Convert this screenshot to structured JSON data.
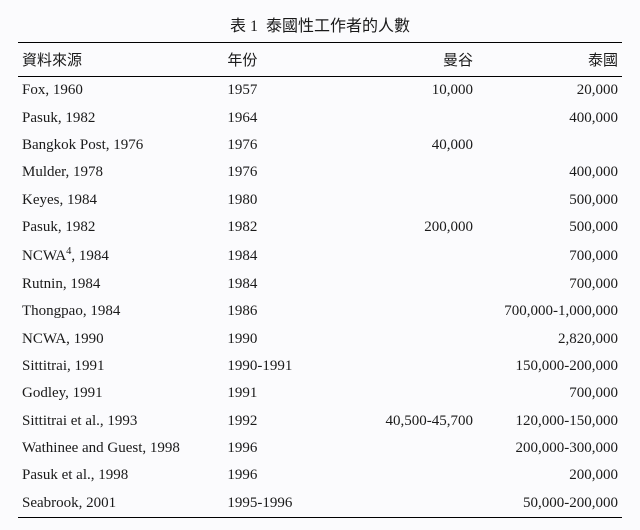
{
  "caption_prefix": "表 1",
  "caption_title": "泰國性工作者的人數",
  "columns": [
    "資料來源",
    "年份",
    "曼谷",
    "泰國"
  ],
  "rows": [
    {
      "src": "Fox, 1960",
      "yr": "1957",
      "bkk": "10,000",
      "th": "20,000"
    },
    {
      "src": "Pasuk, 1982",
      "yr": "1964",
      "bkk": "",
      "th": "400,000"
    },
    {
      "src": "Bangkok Post, 1976",
      "yr": "1976",
      "bkk": "40,000",
      "th": ""
    },
    {
      "src": "Mulder, 1978",
      "yr": "1976",
      "bkk": "",
      "th": "400,000"
    },
    {
      "src": "Keyes, 1984",
      "yr": "1980",
      "bkk": "",
      "th": "500,000"
    },
    {
      "src": "Pasuk, 1982",
      "yr": "1982",
      "bkk": "200,000",
      "th": "500,000"
    },
    {
      "src": "NCWA",
      "note": "4",
      "src2": ", 1984",
      "yr": "1984",
      "bkk": "",
      "th": "700,000"
    },
    {
      "src": "Rutnin, 1984",
      "yr": "1984",
      "bkk": "",
      "th": "700,000"
    },
    {
      "src": "Thongpao, 1984",
      "yr": "1986",
      "bkk": "",
      "th": "700,000-1,000,000"
    },
    {
      "src": "NCWA, 1990",
      "yr": "1990",
      "bkk": "",
      "th": "2,820,000"
    },
    {
      "src": "Sittitrai, 1991",
      "yr": "1990-1991",
      "bkk": "",
      "th": "150,000-200,000"
    },
    {
      "src": "Godley, 1991",
      "yr": "1991",
      "bkk": "",
      "th": "700,000"
    },
    {
      "src": "Sittitrai et al., 1993",
      "yr": "1992",
      "bkk": "40,500-45,700",
      "th": "120,000-150,000"
    },
    {
      "src": "Wathinee and Guest, 1998",
      "yr": "1996",
      "bkk": "",
      "th": "200,000-300,000"
    },
    {
      "src": "Pasuk et al., 1998",
      "yr": "1996",
      "bkk": "",
      "th": "200,000"
    },
    {
      "src": "Seabrook, 2001",
      "yr": "1995-1996",
      "bkk": "",
      "th": "50,000-200,000"
    }
  ]
}
